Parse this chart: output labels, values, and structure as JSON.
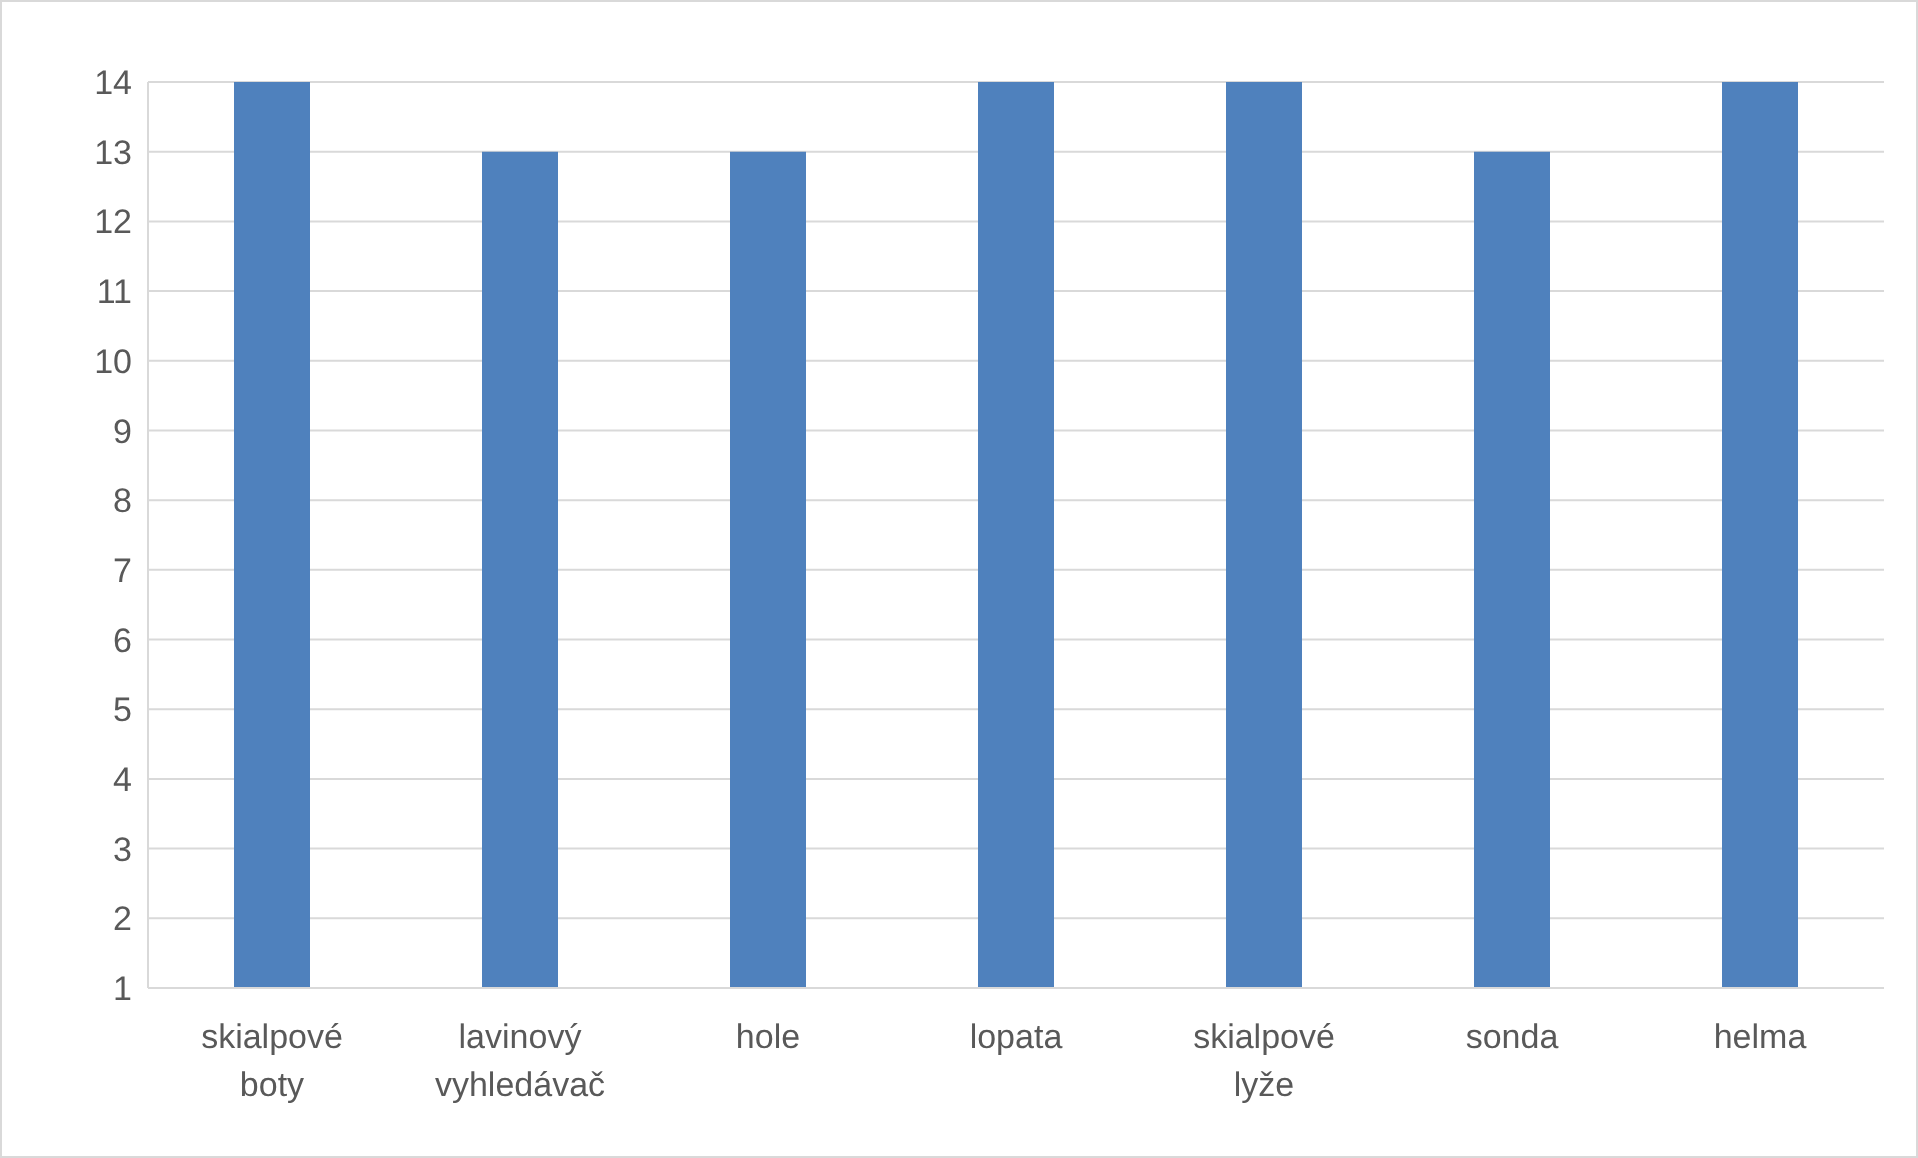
{
  "chart_data": {
    "type": "bar",
    "categories": [
      "skialpové boty",
      "lavinový vyhledávač",
      "hole",
      "lopata",
      "skialpové lyže",
      "sonda",
      "helma"
    ],
    "values": [
      14,
      13,
      13,
      14,
      14,
      13,
      14
    ],
    "color": "#4f81bd",
    "ylim": [
      1,
      14
    ],
    "yticks": [
      1,
      2,
      3,
      4,
      5,
      6,
      7,
      8,
      9,
      10,
      11,
      12,
      13,
      14
    ],
    "grid": "y",
    "legend": false
  }
}
